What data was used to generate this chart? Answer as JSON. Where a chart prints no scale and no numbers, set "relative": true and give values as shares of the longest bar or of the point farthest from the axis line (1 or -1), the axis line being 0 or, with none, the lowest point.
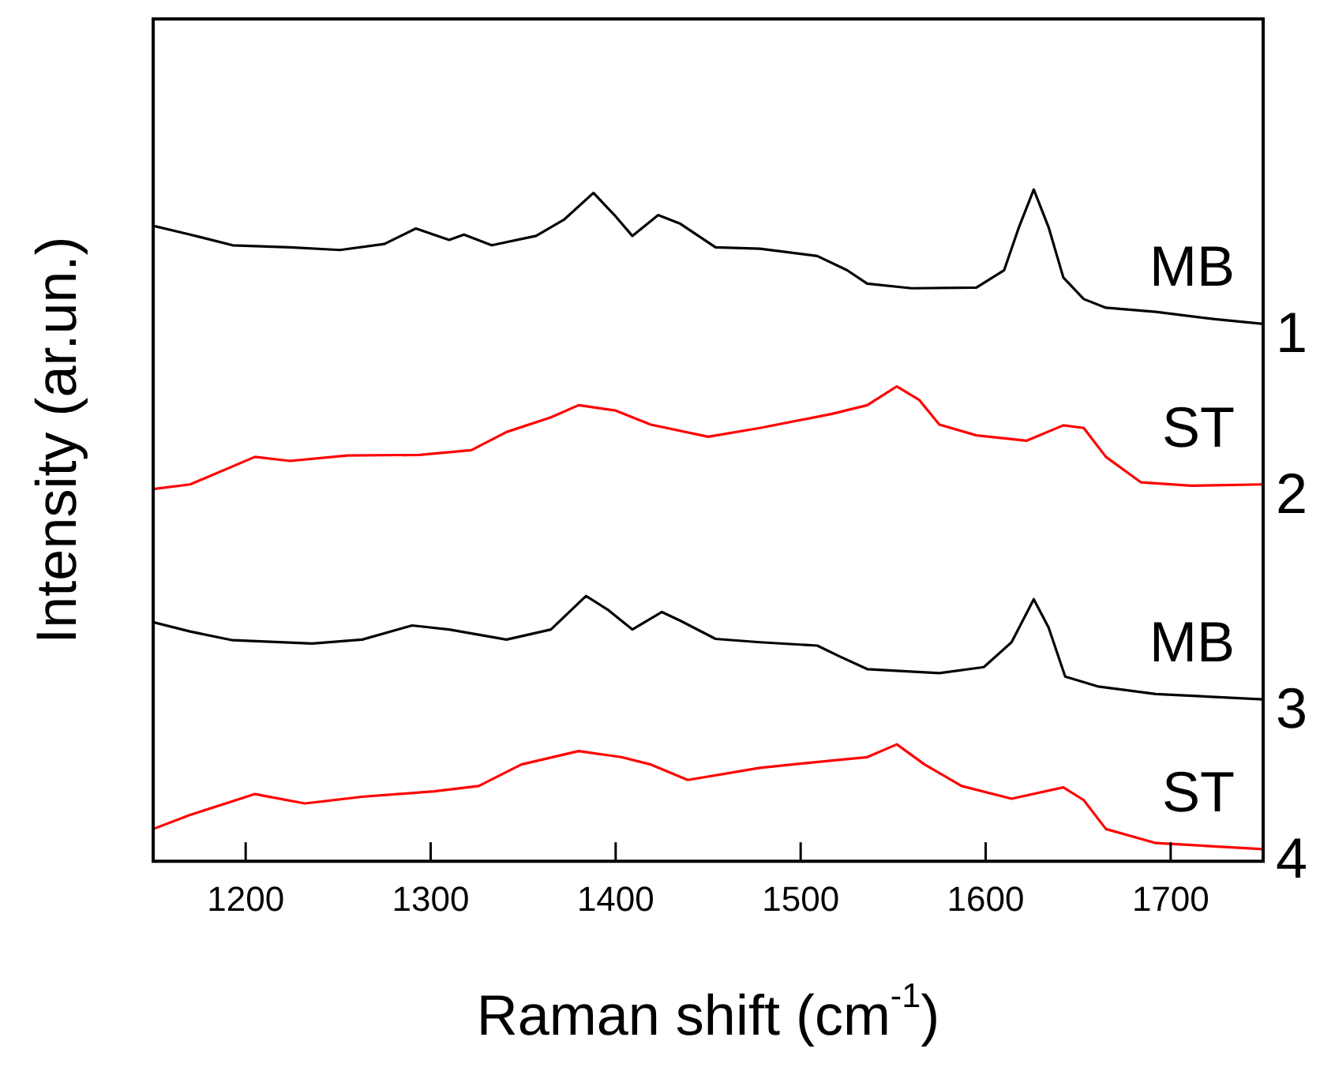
{
  "chart_data": {
    "type": "line",
    "relative": true,
    "xlabel": "Raman shift (cm$^{-1}$)",
    "ylabel": "Intensity (ar.un.)",
    "xlim": [
      1150,
      1750
    ],
    "xticks": [
      1200,
      1300,
      1400,
      1500,
      1600,
      1700
    ],
    "legend": false,
    "marker": "none",
    "line_style": "solid",
    "annotations": [
      "1",
      "2",
      "3",
      "4"
    ],
    "series": [
      {
        "name": "MB",
        "color": "#000000",
        "x": [
          1150,
          1170,
          1193,
          1224,
          1251,
          1275,
          1292,
          1310,
          1318,
          1333,
          1357,
          1372,
          1388,
          1400,
          1409,
          1423,
          1435,
          1454,
          1478,
          1509,
          1525,
          1536,
          1560,
          1595,
          1610,
          1618,
          1626,
          1634,
          1642,
          1653,
          1665,
          1692,
          1724,
          1750
        ],
        "values": [
          0.946,
          0.933,
          0.917,
          0.914,
          0.91,
          0.919,
          0.942,
          0.925,
          0.933,
          0.917,
          0.931,
          0.955,
          0.995,
          0.96,
          0.931,
          0.962,
          0.949,
          0.914,
          0.912,
          0.901,
          0.88,
          0.86,
          0.853,
          0.854,
          0.88,
          0.944,
          1.0,
          0.944,
          0.869,
          0.837,
          0.824,
          0.818,
          0.807,
          0.8
        ]
      },
      {
        "name": "ST",
        "color": "#ff0000",
        "x": [
          1150,
          1170,
          1205,
          1224,
          1255,
          1294,
          1322,
          1341,
          1365,
          1380,
          1400,
          1419,
          1450,
          1478,
          1517,
          1536,
          1552,
          1564,
          1575,
          1595,
          1622,
          1642,
          1653,
          1665,
          1684,
          1711,
          1750
        ],
        "values": [
          0.554,
          0.561,
          0.602,
          0.596,
          0.604,
          0.605,
          0.612,
          0.639,
          0.661,
          0.679,
          0.671,
          0.65,
          0.632,
          0.645,
          0.666,
          0.679,
          0.707,
          0.687,
          0.65,
          0.634,
          0.626,
          0.649,
          0.645,
          0.602,
          0.564,
          0.559,
          0.561
        ]
      },
      {
        "name": "MB",
        "color": "#000000",
        "x": [
          1150,
          1170,
          1193,
          1236,
          1263,
          1290,
          1310,
          1341,
          1365,
          1384,
          1396,
          1409,
          1425,
          1435,
          1454,
          1478,
          1509,
          1521,
          1536,
          1575,
          1599,
          1614,
          1626,
          1634,
          1643,
          1661,
          1692,
          1750
        ],
        "values": [
          0.356,
          0.342,
          0.329,
          0.324,
          0.33,
          0.351,
          0.345,
          0.33,
          0.345,
          0.395,
          0.374,
          0.345,
          0.371,
          0.358,
          0.331,
          0.326,
          0.321,
          0.305,
          0.286,
          0.28,
          0.289,
          0.326,
          0.39,
          0.348,
          0.275,
          0.26,
          0.249,
          0.241
        ]
      },
      {
        "name": "ST",
        "color": "#ff0000",
        "x": [
          1150,
          1170,
          1205,
          1232,
          1263,
          1302,
          1326,
          1349,
          1380,
          1403,
          1419,
          1439,
          1478,
          1517,
          1536,
          1552,
          1567,
          1587,
          1614,
          1642,
          1653,
          1665,
          1692,
          1750
        ],
        "values": [
          0.048,
          0.069,
          0.1,
          0.086,
          0.096,
          0.104,
          0.112,
          0.144,
          0.164,
          0.155,
          0.144,
          0.121,
          0.139,
          0.15,
          0.155,
          0.174,
          0.144,
          0.112,
          0.093,
          0.11,
          0.091,
          0.048,
          0.027,
          0.018
        ]
      }
    ]
  }
}
